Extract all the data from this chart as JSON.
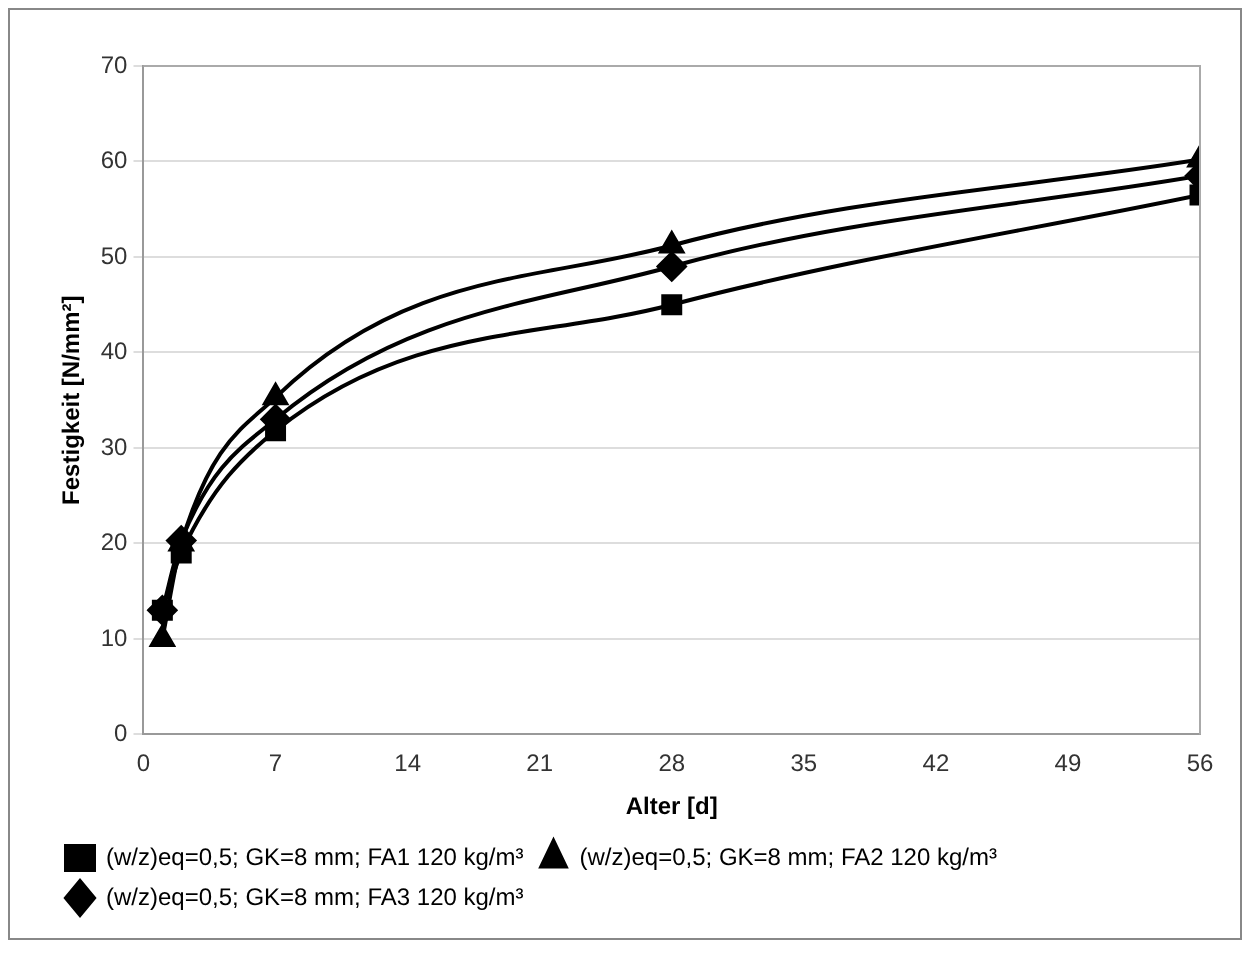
{
  "chart_data": {
    "type": "line",
    "xlabel": "Alter [d]",
    "ylabel": "Festigkeit [N/mm²]",
    "x": [
      1,
      2,
      7,
      28,
      56
    ],
    "series": [
      {
        "name": "(w/z)eq=0,5; GK=8 mm; FA1 120 kg/m³",
        "color": "#000000",
        "marker": "square",
        "values": [
          13,
          19,
          31.8,
          45,
          56.5
        ]
      },
      {
        "name": "(w/z)eq=0,5; GK=8 mm; FA2 120 kg/m³",
        "color": "#000000",
        "marker": "triangle",
        "values": [
          10,
          20,
          35.3,
          51.2,
          60.2
        ]
      },
      {
        "name": "(w/z)eq=0,5; GK=8 mm; FA3 120 kg/m³",
        "color": "#000000",
        "marker": "diamond",
        "values": [
          13,
          20.3,
          33,
          49,
          58.5
        ]
      }
    ],
    "xlim": [
      0,
      56
    ],
    "xticks": [
      0,
      7,
      14,
      21,
      28,
      35,
      42,
      49,
      56
    ],
    "ylim": [
      0,
      70
    ],
    "yticks": [
      0,
      10,
      20,
      30,
      40,
      50,
      60,
      70
    ],
    "grid": "y",
    "legend": "bottom",
    "line_style": "solid"
  }
}
